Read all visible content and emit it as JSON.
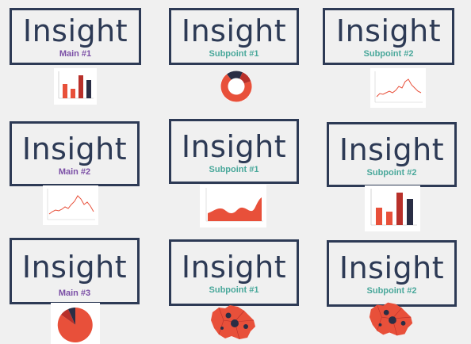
{
  "colors": {
    "border": "#2d3a55",
    "main": "#7b4fa6",
    "subpoint": "#4aa89b",
    "red": "#e8503a",
    "dark_red": "#b8302a",
    "navy": "#2a2e45",
    "background": "#f0f0f0"
  },
  "cards": [
    {
      "title": "Insight",
      "label": "Main #1",
      "kind": "main",
      "chart": "bar-chart"
    },
    {
      "title": "Insight",
      "label": "Subpoint #1",
      "kind": "subpoint",
      "chart": "donut-chart"
    },
    {
      "title": "Insight",
      "label": "Subpoint #2",
      "kind": "subpoint",
      "chart": "line-chart"
    },
    {
      "title": "Insight",
      "label": "Main #2",
      "kind": "main",
      "chart": "line-chart"
    },
    {
      "title": "Insight",
      "label": "Subpoint #1",
      "kind": "subpoint",
      "chart": "area-chart"
    },
    {
      "title": "Insight",
      "label": "Subpoint #2",
      "kind": "subpoint",
      "chart": "bar-chart"
    },
    {
      "title": "Insight",
      "label": "Main #3",
      "kind": "main",
      "chart": "pie-chart"
    },
    {
      "title": "Insight",
      "label": "Subpoint #1",
      "kind": "subpoint",
      "chart": "map"
    },
    {
      "title": "Insight",
      "label": "Subpoint #2",
      "kind": "subpoint",
      "chart": "map"
    }
  ]
}
